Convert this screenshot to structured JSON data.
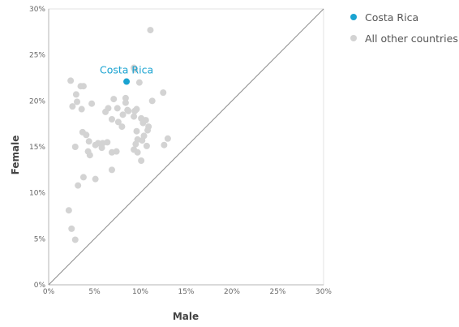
{
  "chart_data": {
    "type": "scatter",
    "xlabel": "Male",
    "ylabel": "Female",
    "xlim": [
      0,
      30
    ],
    "ylim": [
      0,
      30
    ],
    "x_ticks": [
      "0%",
      "5%",
      "10%",
      "15%",
      "20%",
      "25%",
      "30%"
    ],
    "y_ticks": [
      "0%",
      "5%",
      "10%",
      "15%",
      "20%",
      "25%",
      "30%"
    ],
    "reference_line": "x = y",
    "grid": false,
    "legend_position": "top-right",
    "series": [
      {
        "name": "Costa Rica",
        "color": "#1aa3d1",
        "label": "Costa Rica",
        "points": [
          [
            8.5,
            22.1
          ]
        ]
      },
      {
        "name": "All other countries",
        "color": "#d3d3d3",
        "points": [
          [
            11.1,
            27.7
          ],
          [
            9.3,
            23.6
          ],
          [
            9.4,
            23.4
          ],
          [
            2.4,
            22.2
          ],
          [
            3.5,
            21.6
          ],
          [
            3.8,
            21.6
          ],
          [
            9.9,
            22.0
          ],
          [
            12.5,
            20.9
          ],
          [
            3.0,
            20.7
          ],
          [
            7.1,
            20.2
          ],
          [
            8.4,
            20.3
          ],
          [
            11.3,
            20.0
          ],
          [
            3.1,
            19.9
          ],
          [
            4.7,
            19.7
          ],
          [
            8.4,
            19.8
          ],
          [
            2.6,
            19.4
          ],
          [
            3.6,
            19.1
          ],
          [
            6.5,
            19.2
          ],
          [
            7.5,
            19.2
          ],
          [
            8.6,
            19.0
          ],
          [
            8.7,
            18.9
          ],
          [
            9.6,
            19.1
          ],
          [
            9.4,
            18.9
          ],
          [
            6.2,
            18.8
          ],
          [
            8.1,
            18.5
          ],
          [
            9.3,
            18.3
          ],
          [
            10.1,
            18.1
          ],
          [
            10.6,
            17.9
          ],
          [
            10.3,
            17.6
          ],
          [
            6.9,
            18.0
          ],
          [
            7.6,
            17.7
          ],
          [
            8.0,
            17.2
          ],
          [
            10.9,
            17.2
          ],
          [
            10.8,
            16.8
          ],
          [
            9.6,
            16.7
          ],
          [
            3.7,
            16.6
          ],
          [
            4.1,
            16.3
          ],
          [
            10.4,
            16.2
          ],
          [
            13.0,
            15.9
          ],
          [
            9.7,
            15.8
          ],
          [
            4.4,
            15.6
          ],
          [
            10.2,
            15.7
          ],
          [
            5.4,
            15.4
          ],
          [
            5.9,
            15.4
          ],
          [
            6.4,
            15.5
          ],
          [
            9.5,
            15.3
          ],
          [
            5.1,
            15.2
          ],
          [
            2.9,
            15.0
          ],
          [
            5.8,
            14.9
          ],
          [
            12.6,
            15.2
          ],
          [
            10.7,
            15.1
          ],
          [
            4.3,
            14.5
          ],
          [
            6.9,
            14.4
          ],
          [
            9.3,
            14.7
          ],
          [
            7.4,
            14.5
          ],
          [
            9.7,
            14.4
          ],
          [
            4.5,
            14.1
          ],
          [
            10.1,
            13.5
          ],
          [
            6.9,
            12.5
          ],
          [
            3.8,
            11.7
          ],
          [
            5.1,
            11.5
          ],
          [
            3.2,
            10.8
          ],
          [
            2.2,
            8.1
          ],
          [
            2.5,
            6.1
          ],
          [
            2.9,
            4.9
          ]
        ]
      }
    ]
  }
}
